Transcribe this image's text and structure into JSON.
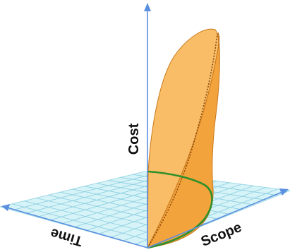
{
  "labels": {
    "cost": "Cost",
    "scope": "Scope",
    "time": "Time"
  },
  "colors": {
    "axis": "#5b8fe0",
    "grid_fill": "#d6f3f7",
    "grid_line": "#7fcbe0",
    "surface_fill": "#f7b45a",
    "surface_shade": "#f29a2e",
    "surface_edge": "#c9781a",
    "base_curve": "#2f8f2a",
    "dashed_curve": "#8a4a10"
  }
}
